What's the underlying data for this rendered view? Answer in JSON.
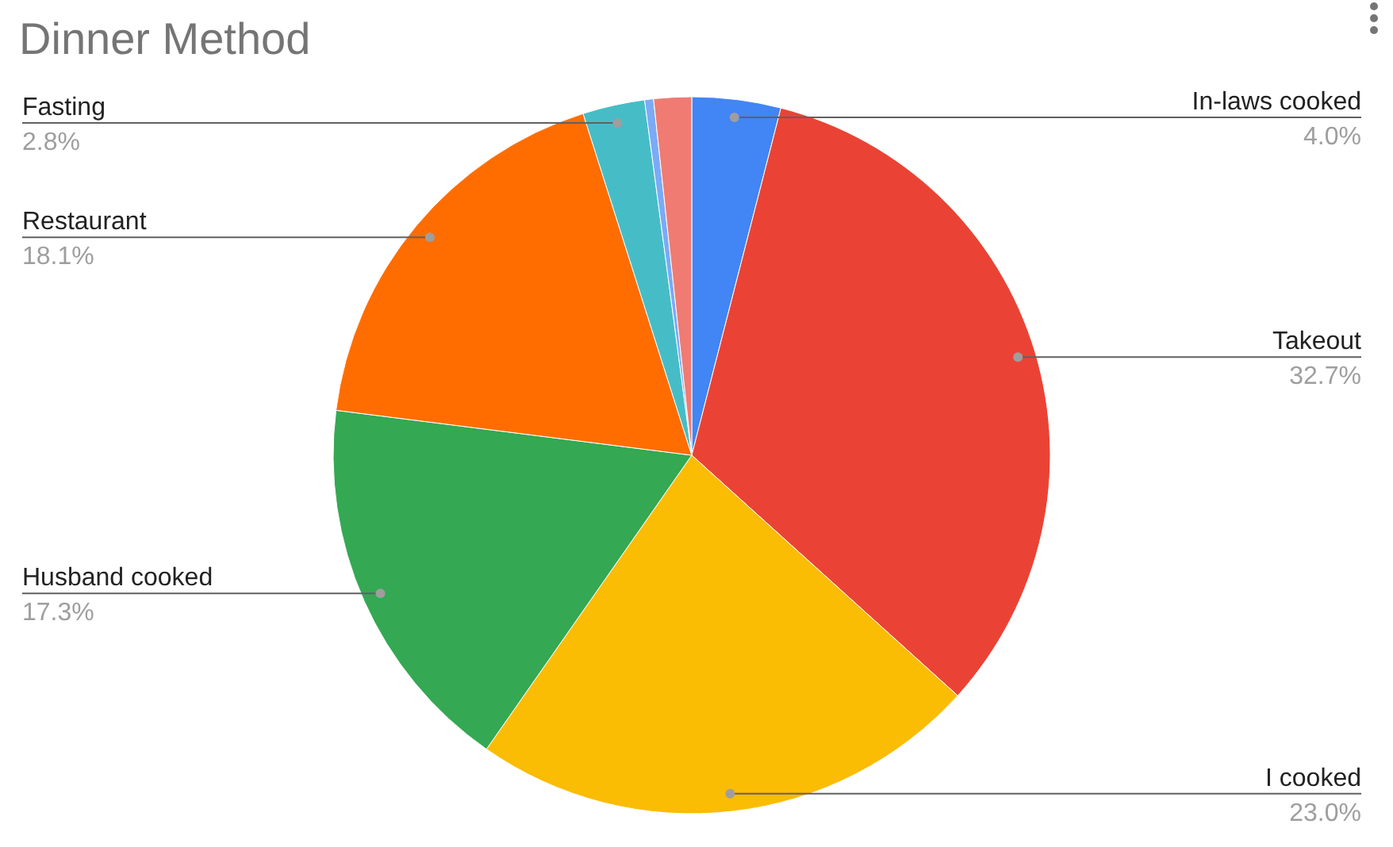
{
  "chart_data": {
    "type": "pie",
    "title": "Dinner Method",
    "categories": [
      "In-laws cooked",
      "Takeout",
      "I cooked",
      "Husband cooked",
      "Restaurant",
      "Fasting",
      null,
      null
    ],
    "values": [
      4.0,
      32.7,
      23.0,
      17.3,
      18.1,
      2.8,
      0.4,
      1.7
    ],
    "colors": [
      "#4285f4",
      "#ea4335",
      "#fbbc04",
      "#34a853",
      "#ff6d01",
      "#46bdc6",
      "#7baaf7",
      "#f07b72"
    ],
    "value_labels": [
      "4.0%",
      "32.7%",
      "23.0%",
      "17.3%",
      "18.1%",
      "2.8%",
      null,
      null
    ]
  }
}
